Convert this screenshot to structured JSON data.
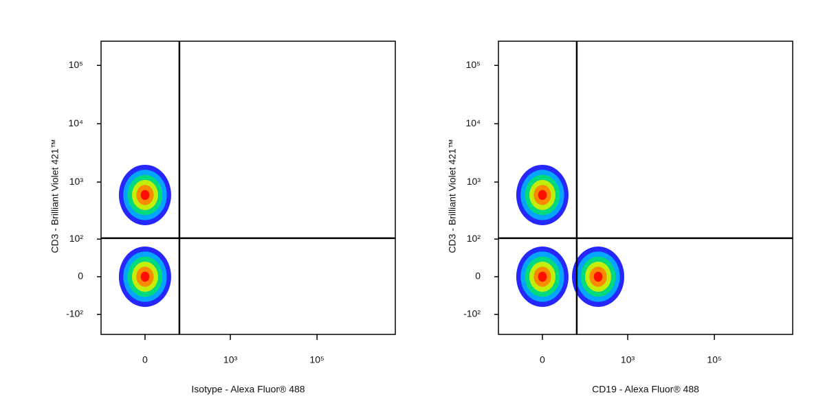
{
  "chart_data": [
    {
      "type": "density",
      "scale": "biexponential",
      "x_label": "Isotype - Alexa Fluor® 488",
      "y_label": "CD3 - Brilliant Violet 421™",
      "xlim": [
        -110,
        6400000
      ],
      "ylim": [
        -230,
        260000
      ],
      "xticks": [
        0,
        {
          "value": 1000,
          "label": "10³"
        },
        {
          "value": 100000,
          "label": "10⁵"
        }
      ],
      "yticks": [
        {
          "value": -100,
          "label": "-10²"
        },
        0,
        {
          "value": 100,
          "label": "10²"
        },
        {
          "value": 1000,
          "label": "10³"
        },
        {
          "value": 10000,
          "label": "10⁴"
        },
        {
          "value": 100000,
          "label": "10⁵"
        }
      ],
      "gate": {
        "x": 65,
        "y": 104
      },
      "x": [
        0,
        0
      ],
      "values": [
        600,
        0
      ],
      "colors": [
        "#0000ff",
        "#00b4ff",
        "#00e070",
        "#d8f000",
        "#ff8000",
        "#ff0000"
      ]
    },
    {
      "type": "density",
      "scale": "biexponential",
      "x_label": "CD19 - Alexa Fluor® 488",
      "y_label": "CD3 - Brilliant Violet 421™",
      "xlim": [
        -110,
        6400000
      ],
      "ylim": [
        -230,
        260000
      ],
      "xticks": [
        0,
        {
          "value": 1000,
          "label": "10³"
        },
        {
          "value": 100000,
          "label": "10⁵"
        }
      ],
      "yticks": [
        {
          "value": -100,
          "label": "-10²"
        },
        0,
        {
          "value": 100,
          "label": "10²"
        },
        {
          "value": 1000,
          "label": "10³"
        },
        {
          "value": 10000,
          "label": "10⁴"
        },
        {
          "value": 100000,
          "label": "10⁵"
        }
      ],
      "gate": {
        "x": 65,
        "y": 104
      },
      "x": [
        0,
        0,
        207
      ],
      "values": [
        600,
        0,
        0
      ],
      "colors": [
        "#0000ff",
        "#00b4ff",
        "#00e070",
        "#d8f000",
        "#ff8000",
        "#ff0000"
      ]
    }
  ]
}
